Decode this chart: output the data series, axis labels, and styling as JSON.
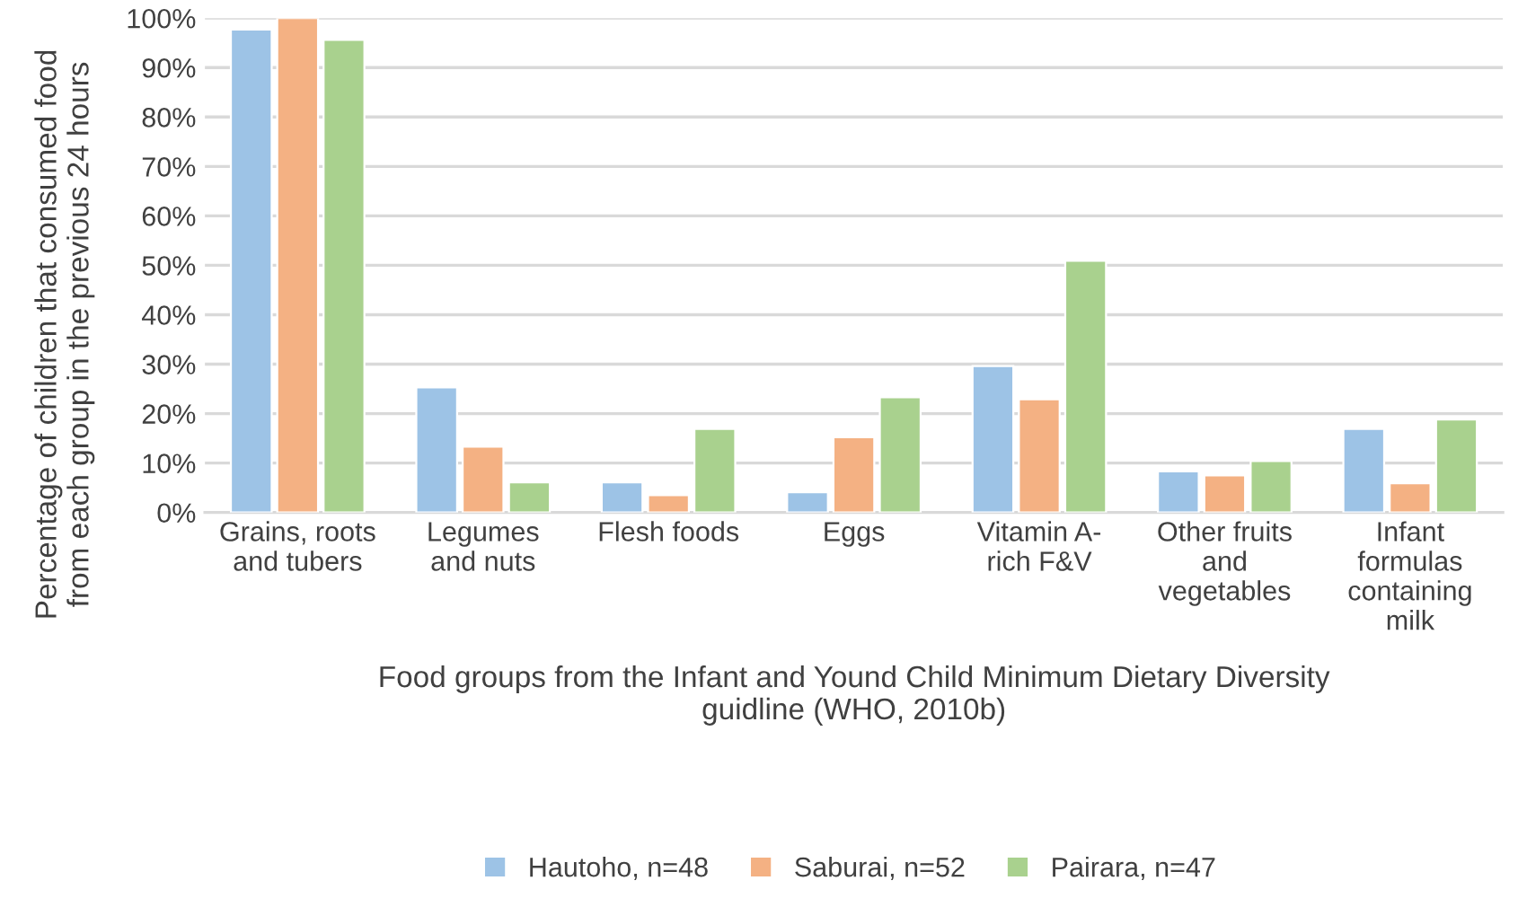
{
  "chart_data": {
    "type": "bar",
    "xlabel": "Food groups from the Infant and Yound Child Minimum Dietary Diversity\nguidline (WHO, 2010b)",
    "ylabel": "Percentage of children that consumed food\nfrom each group in the previous 24 hours",
    "categories": [
      "Grains, roots\nand tubers",
      "Legumes\nand nuts",
      "Flesh foods",
      "Eggs",
      "Vitamin A-\nrich F&V",
      "Other fruits\nand\nvegetables",
      "Infant\nformulas\ncontaining\nmilk"
    ],
    "series": [
      {
        "name": "Hautoho, n=48",
        "color": "#9dc3e6",
        "values": [
          97.7,
          25.3,
          6.1,
          4.1,
          29.6,
          8.3,
          16.9
        ]
      },
      {
        "name": "Saburai, n=52",
        "color": "#f4b183",
        "values": [
          100,
          13.3,
          3.5,
          15.2,
          22.9,
          7.5,
          5.9
        ]
      },
      {
        "name": "Pairara, n=47",
        "color": "#a9d18e",
        "values": [
          95.6,
          6.1,
          16.9,
          23.3,
          50.9,
          10.4,
          18.8
        ]
      }
    ],
    "ylim": [
      0,
      100
    ],
    "yticks": [
      {
        "value": 0,
        "label": "0%"
      },
      {
        "value": 10,
        "label": "10%"
      },
      {
        "value": 20,
        "label": "20%"
      },
      {
        "value": 30,
        "label": "30%"
      },
      {
        "value": 40,
        "label": "40%"
      },
      {
        "value": 50,
        "label": "50%"
      },
      {
        "value": 60,
        "label": "60%"
      },
      {
        "value": 70,
        "label": "70%"
      },
      {
        "value": 80,
        "label": "80%"
      },
      {
        "value": 90,
        "label": "90%"
      },
      {
        "value": 100,
        "label": "100%"
      }
    ],
    "grid": "y",
    "legend": "bottom"
  }
}
